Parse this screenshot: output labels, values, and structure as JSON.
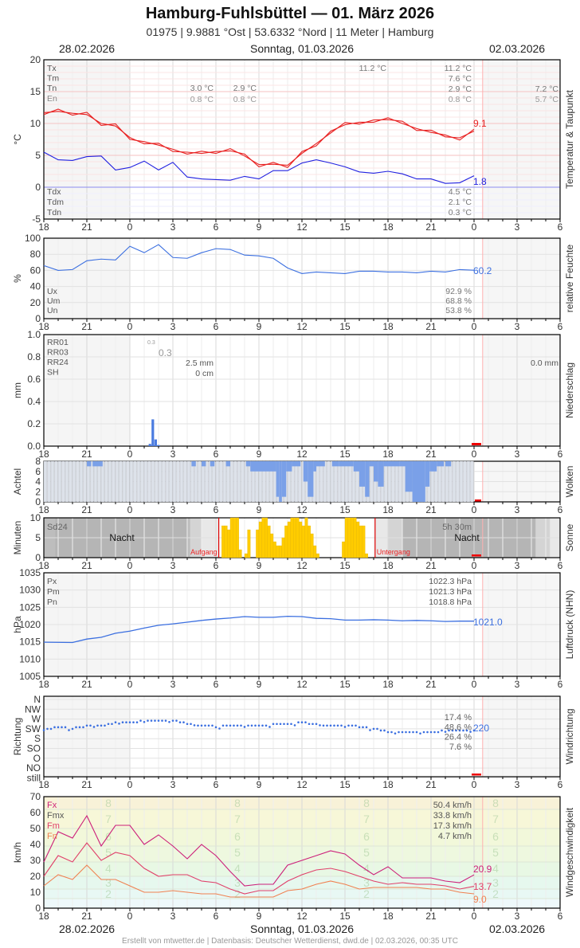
{
  "header": {
    "title": "Hamburg-Fuhlsbüttel  —  01. März 2026",
    "subtitle": "01975  |  9.9881 °Ost  |  53.6332 °Nord  |  11 Meter  |  Hamburg",
    "date_left": "28.02.2026",
    "date_center": "Sonntag, 01.03.2026",
    "date_right": "02.03.2026"
  },
  "footer": {
    "credit": "Erstellt von mtwetter.de | Datenbasis: Deutscher Wetterdienst, dwd.de | 02.03.2026, 00:35 UTC"
  },
  "x_axis": {
    "ticks": [
      "18",
      "21",
      "0",
      "3",
      "6",
      "9",
      "12",
      "15",
      "18",
      "21",
      "0",
      "3",
      "6"
    ],
    "start_hour": 18,
    "span_hours": 36,
    "now_hour_offset": 30.6
  },
  "chart_data": [
    {
      "id": "temperature",
      "type": "line",
      "title": "Temperatur & Taupunkt",
      "ylabel": "°C",
      "ylim": [
        -5,
        20
      ],
      "yticks": [
        20,
        15,
        10,
        5,
        0,
        -5
      ],
      "legend_top": [
        "Tx",
        "Tm",
        "Tn",
        "En"
      ],
      "legend_bottom": [
        "Tdx",
        "Tdm",
        "Tdn"
      ],
      "stats_prev_night": {
        "Tn": "3.0 °C",
        "En": "0.8 °C"
      },
      "stats_morning": {
        "Tn": "2.9 °C",
        "En": "0.8 °C"
      },
      "stats_max_marker": "11.2 °C",
      "stats_day": {
        "Tx": "11.2 °C",
        "Tm": "7.6 °C",
        "Tn": "2.9 °C",
        "En": "0.8 °C"
      },
      "stats_next": {
        "Tn": "7.2 °C",
        "En": "5.7 °C"
      },
      "stats_dew": {
        "Tdx": "4.5 °C",
        "Tdm": "2.1 °C",
        "Tdn": "0.3 °C"
      },
      "current_temp": "9.1",
      "current_dew": "1.8",
      "series": [
        {
          "name": "Temperatur",
          "color": "#e82020",
          "x": [
            0,
            1,
            2,
            3,
            4,
            5,
            6,
            7,
            8,
            9,
            10,
            11,
            12,
            13,
            14,
            15,
            16,
            17,
            18,
            19,
            20,
            21,
            22,
            23,
            24,
            25,
            26,
            27,
            28,
            29,
            30
          ],
          "values": [
            11.7,
            11.9,
            11.6,
            11.4,
            10.0,
            9.6,
            7.8,
            6.8,
            6.9,
            5.6,
            5.5,
            5.3,
            5.6,
            5.7,
            5.2,
            3.2,
            3.9,
            3.1,
            5.6,
            6.5,
            8.8,
            9.8,
            10.2,
            10.2,
            10.9,
            10.0,
            9.2,
            8.6,
            8.2,
            7.4,
            9.1
          ]
        },
        {
          "name": "Taupunkt",
          "color": "#2020e0",
          "x": [
            0,
            1,
            2,
            3,
            4,
            5,
            6,
            7,
            8,
            9,
            10,
            11,
            12,
            13,
            14,
            15,
            16,
            17,
            18,
            19,
            20,
            21,
            22,
            23,
            24,
            25,
            26,
            27,
            28,
            29,
            30
          ],
          "values": [
            5.5,
            4.3,
            4.2,
            4.8,
            4.9,
            2.7,
            3.1,
            4.1,
            2.7,
            3.9,
            1.6,
            1.3,
            1.2,
            1.1,
            1.7,
            1.3,
            2.6,
            2.6,
            3.8,
            4.3,
            3.8,
            3.2,
            2.4,
            2.2,
            2.5,
            2.1,
            1.3,
            1.3,
            0.6,
            0.7,
            1.8
          ]
        }
      ]
    },
    {
      "id": "humidity",
      "type": "line",
      "title": "relative Feuchte",
      "ylabel": "%",
      "ylim": [
        0,
        100
      ],
      "yticks": [
        100,
        80,
        60,
        40,
        20,
        0
      ],
      "legend": [
        "Ux",
        "Um",
        "Un"
      ],
      "stats": {
        "Ux": "92.9 %",
        "Um": "68.8 %",
        "Un": "53.8 %"
      },
      "current": "60.2",
      "series": [
        {
          "name": "Feuchte",
          "color": "#3b6fe0",
          "x": [
            0,
            1,
            2,
            3,
            4,
            5,
            6,
            7,
            8,
            9,
            10,
            11,
            12,
            13,
            14,
            15,
            16,
            17,
            18,
            19,
            20,
            21,
            22,
            23,
            24,
            25,
            26,
            27,
            28,
            29,
            30
          ],
          "values": [
            66,
            60,
            61,
            72,
            74,
            73,
            90,
            82,
            92,
            76,
            75,
            82,
            87,
            86,
            79,
            78,
            75,
            63,
            56,
            58,
            57,
            56,
            59,
            59,
            58,
            58,
            57,
            59,
            58,
            61,
            60.2
          ]
        }
      ]
    },
    {
      "id": "precipitation",
      "type": "bar",
      "title": "Niederschlag",
      "ylabel": "mm",
      "ylim": [
        0,
        1.0
      ],
      "yticks": [
        "1.0",
        "0.8",
        "0.6",
        "0.4",
        "0.2",
        "0.0"
      ],
      "legend": [
        "RR01",
        "RR03",
        "RR24",
        "SH"
      ],
      "stats": {
        "RR01": "0.3",
        "RR03": "0.3",
        "RR24": "2.5 mm",
        "SH": "0 cm",
        "RR24_next": "0.0 mm"
      },
      "bars": [
        {
          "x": 7.4,
          "value": 0.02
        },
        {
          "x": 7.6,
          "value": 0.24
        },
        {
          "x": 7.8,
          "value": 0.06
        },
        {
          "x": 8.0,
          "value": 0.01
        }
      ],
      "color": "#4a7be0"
    },
    {
      "id": "clouds",
      "type": "bar",
      "title": "Wolken",
      "ylabel": "Achtel",
      "ylim": [
        0,
        8
      ],
      "yticks": [
        8,
        6,
        4,
        2,
        0
      ],
      "color": "#7aa0e8"
    },
    {
      "id": "sunshine",
      "type": "bar",
      "title": "Sonne",
      "ylabel": "Minuten",
      "ylim": [
        0,
        10
      ],
      "yticks": [
        10,
        5,
        0
      ],
      "labels": {
        "sd24_label": "Sd24",
        "sd24_value": "5h 30m",
        "night_left": "Nacht",
        "night_right": "Nacht",
        "sunrise": "Aufgang",
        "sunset": "Untergang"
      },
      "sunrise_hour_offset": 12.2,
      "sunset_hour_offset": 23.1,
      "color": "#ffcc00"
    },
    {
      "id": "pressure",
      "type": "line",
      "title": "Luftdruck (NHN)",
      "ylabel": "hPa",
      "ylim": [
        1005,
        1035
      ],
      "yticks": [
        1035,
        1030,
        1025,
        1020,
        1015,
        1010,
        1005
      ],
      "legend": [
        "Px",
        "Pm",
        "Pn"
      ],
      "stats": {
        "Px": "1022.3 hPa",
        "Pm": "1021.3 hPa",
        "Pn": "1018.8 hPa"
      },
      "current": "1021.0",
      "series": [
        {
          "name": "Luftdruck",
          "color": "#3b6fe0",
          "x": [
            0,
            2,
            3,
            4,
            5,
            6,
            7,
            8,
            9,
            10,
            11,
            12,
            13,
            14,
            15,
            16,
            17,
            18,
            19,
            20,
            21,
            22,
            23,
            24,
            25,
            26,
            27,
            28,
            29,
            30
          ],
          "values": [
            1014.9,
            1014.8,
            1015.8,
            1016.3,
            1017.5,
            1018.1,
            1019.0,
            1019.8,
            1020.2,
            1020.7,
            1021.2,
            1021.6,
            1021.9,
            1022.3,
            1022.1,
            1022.1,
            1022.4,
            1022.3,
            1021.8,
            1021.7,
            1021.3,
            1021.3,
            1021.4,
            1021.3,
            1021.1,
            1021.2,
            1021.1,
            1020.9,
            1021.0,
            1021.0
          ]
        }
      ]
    },
    {
      "id": "wind_direction",
      "type": "scatter",
      "title": "Windrichtung",
      "ylabel": "Richtung",
      "ycategories": [
        "N",
        "NW",
        "W",
        "SW",
        "S",
        "SO",
        "O",
        "NO",
        "still"
      ],
      "stats": [
        "17.4 %",
        "48.6 %",
        "26.4 %",
        "7.6 %"
      ],
      "current": "220",
      "series": [
        {
          "name": "Richtung (deg)",
          "color": "#3b6fe0",
          "x": [
            0,
            1,
            2,
            3,
            4,
            5,
            6,
            7,
            8,
            9,
            10,
            11,
            12,
            13,
            14,
            15,
            16,
            17,
            18,
            19,
            20,
            21,
            22,
            23,
            24,
            25,
            26,
            27,
            28,
            29,
            30
          ],
          "values": [
            225,
            230,
            228,
            238,
            240,
            252,
            255,
            262,
            262,
            265,
            250,
            240,
            235,
            238,
            240,
            238,
            245,
            244,
            254,
            245,
            240,
            240,
            235,
            226,
            212,
            212,
            210,
            208,
            216,
            215,
            220
          ]
        }
      ]
    },
    {
      "id": "wind_speed",
      "type": "line",
      "title": "Windgeschwindigkeit",
      "ylabel": "km/h",
      "ylim": [
        0,
        70
      ],
      "yticks": [
        70,
        60,
        50,
        40,
        30,
        20,
        10,
        0
      ],
      "legend": [
        "Fx",
        "Fmx",
        "Fm",
        "Fn"
      ],
      "stats": {
        "Fx": "50.4 km/h",
        "Fmx": "33.8 km/h",
        "Fm": "17.3 km/h",
        "Fn": "4.7 km/h"
      },
      "beaufort_labels": [
        "8",
        "7",
        "6",
        "5",
        "4",
        "3",
        "2"
      ],
      "current": {
        "Fx": "20.9",
        "Fm": "13.7",
        "Fn": "9.0"
      },
      "series": [
        {
          "name": "Fx (Böen)",
          "color": "#cc1f7a",
          "x": [
            0,
            1,
            2,
            3,
            4,
            5,
            6,
            7,
            8,
            9,
            10,
            11,
            12,
            13,
            14,
            15,
            16,
            17,
            18,
            19,
            20,
            21,
            22,
            23,
            24,
            25,
            26,
            27,
            28,
            29,
            30
          ],
          "values": [
            29,
            48,
            44,
            58,
            39,
            52,
            52,
            40,
            46,
            39,
            31,
            40,
            33,
            23,
            14,
            15,
            15,
            27,
            30,
            33,
            36,
            34,
            27,
            21,
            26,
            19,
            19,
            19,
            17,
            16,
            20.9
          ]
        },
        {
          "name": "Fm (Mittel)",
          "color": "#e0406a",
          "x": [
            0,
            1,
            2,
            3,
            4,
            5,
            6,
            7,
            8,
            9,
            10,
            11,
            12,
            13,
            14,
            15,
            16,
            17,
            18,
            19,
            20,
            21,
            22,
            23,
            24,
            25,
            26,
            27,
            28,
            29,
            30
          ],
          "values": [
            20,
            33,
            29,
            41,
            30,
            35,
            33,
            25,
            20,
            21,
            21,
            17,
            16,
            12,
            9,
            11,
            11,
            17,
            21,
            24,
            25,
            23,
            20,
            17,
            15,
            16,
            15,
            15,
            14,
            12,
            13.7
          ]
        },
        {
          "name": "Fn (Min)",
          "color": "#f08050",
          "x": [
            0,
            1,
            2,
            3,
            4,
            5,
            6,
            7,
            8,
            9,
            10,
            11,
            12,
            13,
            14,
            15,
            16,
            17,
            18,
            19,
            20,
            21,
            22,
            23,
            24,
            25,
            26,
            27,
            28,
            29,
            30
          ],
          "values": [
            14,
            21,
            18,
            27,
            18,
            18,
            14,
            10,
            10,
            11,
            10,
            9,
            9,
            7,
            7,
            7,
            7,
            11,
            12,
            15,
            17,
            15,
            12,
            13,
            13,
            13,
            13,
            12,
            12,
            10,
            9.0
          ]
        }
      ]
    }
  ],
  "panel_titles": {
    "temperature": "Temperatur & Taupunkt",
    "humidity": "relative Feuchte",
    "precipitation": "Niederschlag",
    "clouds": "Wolken",
    "sunshine": "Sonne",
    "pressure": "Luftdruck (NHN)",
    "wind_direction": "Windrichtung",
    "wind_speed": "Windgeschwindigkeit"
  }
}
